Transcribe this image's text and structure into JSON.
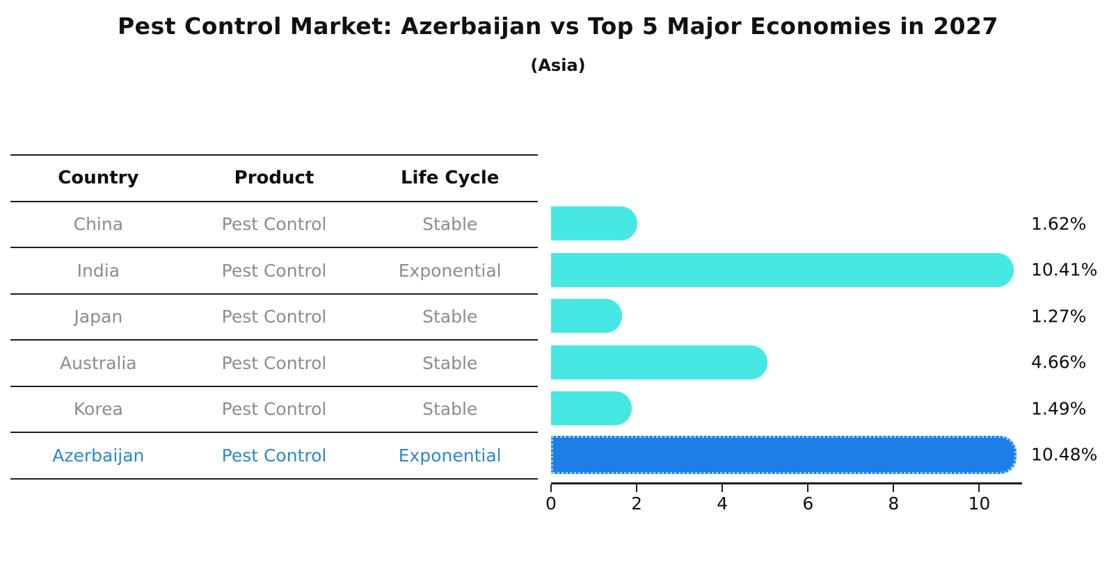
{
  "title": "Pest Control Market: Azerbaijan vs Top 5 Major Economies in 2027",
  "subtitle": "(Asia)",
  "table": {
    "headers": [
      "Country",
      "Product",
      "Life Cycle"
    ],
    "rows": [
      {
        "country": "China",
        "product": "Pest Control",
        "life_cycle": "Stable"
      },
      {
        "country": "India",
        "product": "Pest Control",
        "life_cycle": "Exponential"
      },
      {
        "country": "Japan",
        "product": "Pest Control",
        "life_cycle": "Stable"
      },
      {
        "country": "Australia",
        "product": "Pest Control",
        "life_cycle": "Stable"
      },
      {
        "country": "Korea",
        "product": "Pest Control",
        "life_cycle": "Stable"
      },
      {
        "country": "Azerbaijan",
        "product": "Pest Control",
        "life_cycle": "Exponential"
      }
    ],
    "highlight_row_index": 5
  },
  "chart_data": {
    "type": "bar",
    "orientation": "horizontal",
    "title": "Pest Control Market: Azerbaijan vs Top 5 Major Economies in 2027",
    "subtitle": "(Asia)",
    "categories": [
      "China",
      "India",
      "Japan",
      "Australia",
      "Korea",
      "Azerbaijan"
    ],
    "values": [
      1.62,
      10.41,
      1.27,
      4.66,
      1.49,
      10.48
    ],
    "value_labels": [
      "1.62%",
      "10.41%",
      "1.27%",
      "4.66%",
      "1.49%",
      "10.48%"
    ],
    "xticks": [
      "0",
      "2",
      "4",
      "6",
      "8",
      "10"
    ],
    "xlim": [
      0,
      11
    ],
    "grid": false,
    "legend": "none",
    "bar_color": "#47E8E4",
    "highlight_bar_color": "#1E7EE8",
    "highlight_edge_color": "#8ECDF2",
    "highlight_text_color": "#2E86D1",
    "highlight_index": 5
  }
}
